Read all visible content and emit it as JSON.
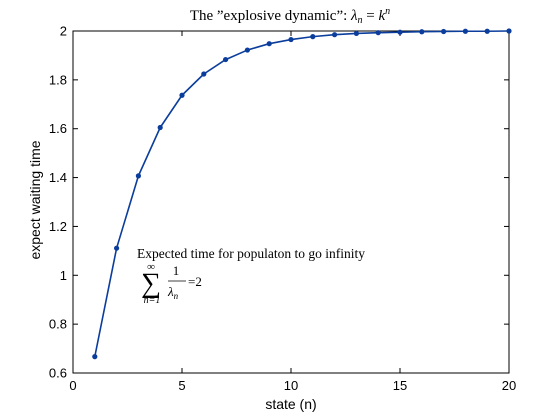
{
  "chart_data": {
    "type": "line",
    "title": {
      "prefix": "The ”explosive dynamic”: ",
      "lambda": "λ",
      "sub": "n",
      "eq": " = ",
      "k": "k",
      "sup": "n"
    },
    "xlabel": "state (n)",
    "ylabel": "expect waiting time",
    "xlim": [
      0,
      20
    ],
    "ylim": [
      0.6,
      2.0
    ],
    "xticks": [
      0,
      5,
      10,
      15,
      20
    ],
    "yticks": [
      0.6,
      0.8,
      1.0,
      1.2,
      1.4,
      1.6,
      1.8,
      2.0
    ],
    "ytick_labels": [
      "0.6",
      "0.8",
      "1",
      "1.2",
      "1.4",
      "1.6",
      "1.8",
      "2"
    ],
    "grid": false,
    "series": [
      {
        "color": "#0b3d9c",
        "marker": "dot",
        "x": [
          1,
          2,
          3,
          4,
          5,
          6,
          7,
          8,
          9,
          10,
          11,
          12,
          13,
          14,
          15,
          16,
          17,
          18,
          19,
          20
        ],
        "values": [
          0.667,
          1.111,
          1.407,
          1.605,
          1.737,
          1.824,
          1.883,
          1.922,
          1.948,
          1.965,
          1.977,
          1.985,
          1.99,
          1.993,
          1.995,
          1.997,
          1.998,
          1.999,
          1.999,
          2.0
        ]
      }
    ],
    "annotation": {
      "text": "Expected time for populaton to go infinity",
      "sum_symbol": "∑",
      "sum_upper": "∞",
      "sum_lower": "n=1",
      "numerator": "1",
      "denominator_lambda": "λ",
      "denominator_sub": "n",
      "result": "=2"
    }
  }
}
